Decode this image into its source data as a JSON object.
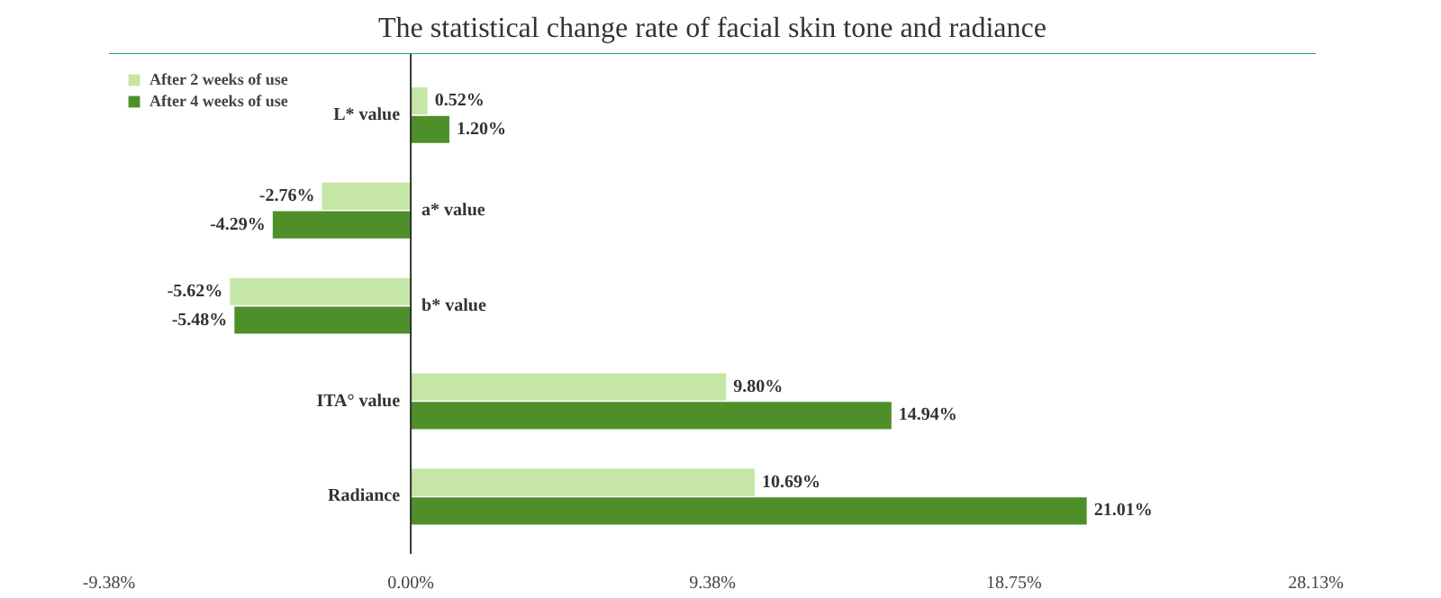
{
  "chart_data": {
    "type": "bar",
    "orientation": "horizontal",
    "title": "The statistical change rate of facial skin tone and radiance",
    "categories": [
      "L* value",
      "a* value",
      "b* value",
      "ITA° value",
      "Radiance"
    ],
    "series": [
      {
        "name": "After 2 weeks of use",
        "color": "#c5e6a6",
        "values": [
          0.52,
          -2.76,
          -5.62,
          9.8,
          10.69
        ],
        "value_labels": [
          "0.52%",
          "-2.76%",
          "-5.62%",
          "9.80%",
          "10.69%"
        ]
      },
      {
        "name": "After 4 weeks of use",
        "color": "#4e8f2a",
        "values": [
          1.2,
          -4.29,
          -5.48,
          14.94,
          21.01
        ],
        "value_labels": [
          "1.20%",
          "-4.29%",
          "-5.48%",
          "14.94%",
          "21.01%"
        ]
      }
    ],
    "xlim": [
      -9.38,
      28.13
    ],
    "xticks": [
      {
        "value": -9.38,
        "label": "-9.38%"
      },
      {
        "value": 0,
        "label": "0.00%"
      },
      {
        "value": 9.38,
        "label": "9.38%"
      },
      {
        "value": 18.75,
        "label": "18.75%"
      },
      {
        "value": 28.13,
        "label": "28.13%"
      }
    ],
    "grid": false,
    "legend": "top left"
  }
}
